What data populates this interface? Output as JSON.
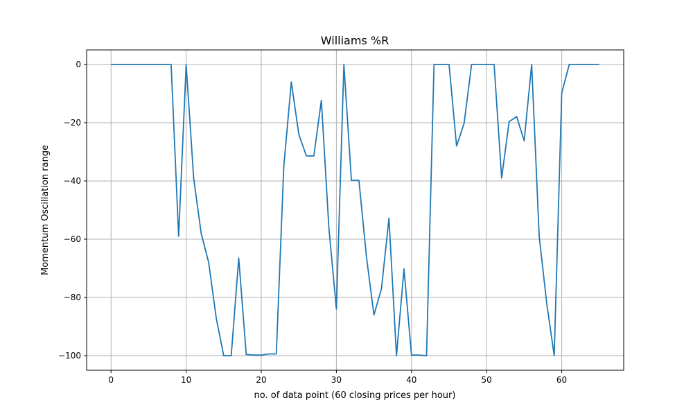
{
  "chart_data": {
    "type": "line",
    "title": "Williams %R",
    "xlabel": "no. of data point (60 closing prices per hour)",
    "ylabel": "Momentum Oscillation range",
    "xlim": [
      -3.25,
      68.25
    ],
    "ylim": [
      -105,
      5
    ],
    "xticks": [
      0,
      10,
      20,
      30,
      40,
      50,
      60
    ],
    "yticks": [
      0,
      -20,
      -40,
      -60,
      -80,
      -100
    ],
    "grid": true,
    "colors": {
      "line": "#1f77b4"
    },
    "series": [
      {
        "x": [
          0,
          1,
          2,
          3,
          4,
          5,
          6,
          7,
          8,
          9,
          10,
          11,
          12,
          13,
          14,
          15,
          16,
          17,
          18,
          19,
          20,
          21,
          22,
          23,
          24,
          25,
          26,
          27,
          28,
          29,
          30,
          31,
          32,
          33,
          34,
          35,
          36,
          37,
          38,
          39,
          40,
          41,
          42,
          43,
          44,
          45,
          46,
          47,
          48,
          49,
          50,
          51,
          52,
          53,
          54,
          55,
          56,
          57,
          58,
          59,
          60,
          61,
          62,
          63,
          64,
          65
        ],
        "values": [
          0,
          0,
          0,
          0,
          0,
          0,
          0,
          0,
          0,
          -59,
          0,
          -39,
          -58,
          -68,
          -87,
          -100,
          -100,
          -66.5,
          -99.6,
          -99.8,
          -99.8,
          -99.4,
          -99.4,
          -35,
          -6,
          -24,
          -31.4,
          -31.4,
          -12.3,
          -56,
          -84,
          0,
          -39.8,
          -39.8,
          -66,
          -86,
          -77,
          -52.8,
          -100,
          -70.2,
          -99.8,
          -99.8,
          -100,
          0,
          0,
          0,
          -28,
          -20.2,
          0,
          0,
          0,
          0,
          -39,
          -19.6,
          -17.9,
          -26.2,
          0,
          -59,
          -82,
          -100,
          -9.8,
          0,
          0,
          0,
          0,
          0
        ]
      }
    ]
  }
}
